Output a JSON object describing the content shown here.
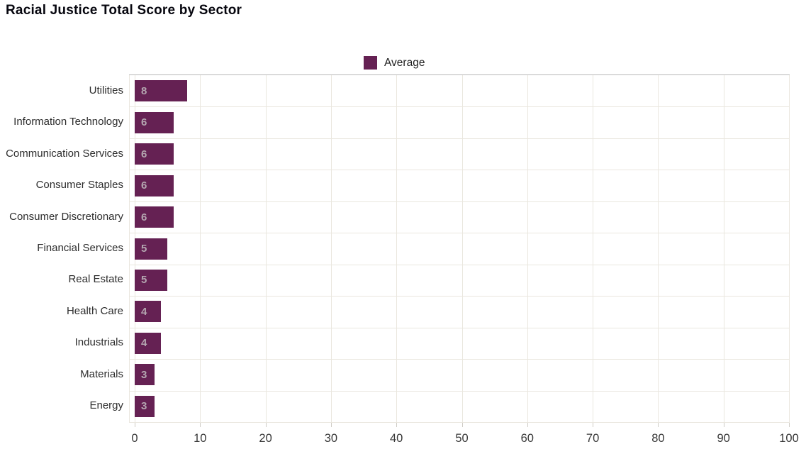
{
  "title": "Racial Justice Total Score by Sector",
  "legend": {
    "label": "Average",
    "swatch_color": "#652153"
  },
  "chart_data": {
    "type": "bar",
    "orientation": "horizontal",
    "title": "Racial Justice Total Score by Sector",
    "categories": [
      "Utilities",
      "Information Technology",
      "Communication Services",
      "Consumer Staples",
      "Consumer Discretionary",
      "Financial Services",
      "Real Estate",
      "Health Care",
      "Industrials",
      "Materials",
      "Energy"
    ],
    "series": [
      {
        "name": "Average",
        "values": [
          8,
          6,
          6,
          6,
          6,
          5,
          5,
          4,
          4,
          3,
          3
        ]
      }
    ],
    "xlabel": "",
    "ylabel": "",
    "xlim": [
      0,
      100
    ],
    "x_ticks": [
      0,
      10,
      20,
      30,
      40,
      50,
      60,
      70,
      80,
      90,
      100
    ],
    "grid": true,
    "legend_position": "top-center",
    "bar_color": "#652153",
    "value_label_color": "#b4a6b0",
    "gridline_color": "#eae7df",
    "plot_top_border_color": "#b9b9b9",
    "background_color": "#ffffff"
  }
}
